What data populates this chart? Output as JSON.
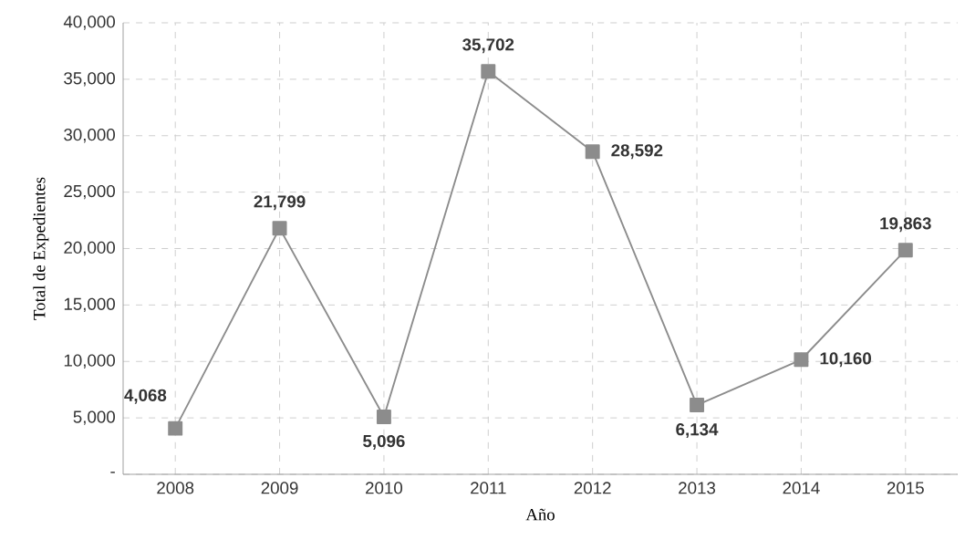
{
  "chart_data": {
    "type": "line",
    "xlabel": "Año",
    "ylabel": "Total de Expedientes",
    "categories": [
      "2008",
      "2009",
      "2010",
      "2011",
      "2012",
      "2013",
      "2014",
      "2015"
    ],
    "values": [
      4068,
      21799,
      5096,
      35702,
      28592,
      6134,
      10160,
      19863
    ],
    "value_labels": [
      "4,068",
      "21,799",
      "5,096",
      "35,702",
      "28,592",
      "6,134",
      "10,160",
      "19,863"
    ],
    "color": "#8c8c8c",
    "marker": "square",
    "line_style": "solid",
    "grid": true,
    "ylim": [
      0,
      40000
    ],
    "yticks": [
      {
        "value": 0,
        "label": "-"
      },
      {
        "value": 5000,
        "label": "5,000"
      },
      {
        "value": 10000,
        "label": "10,000"
      },
      {
        "value": 15000,
        "label": "15,000"
      },
      {
        "value": 20000,
        "label": "20,000"
      },
      {
        "value": 25000,
        "label": "25,000"
      },
      {
        "value": 30000,
        "label": "30,000"
      },
      {
        "value": 35000,
        "label": "35,000"
      },
      {
        "value": 40000,
        "label": "40,000"
      }
    ]
  }
}
